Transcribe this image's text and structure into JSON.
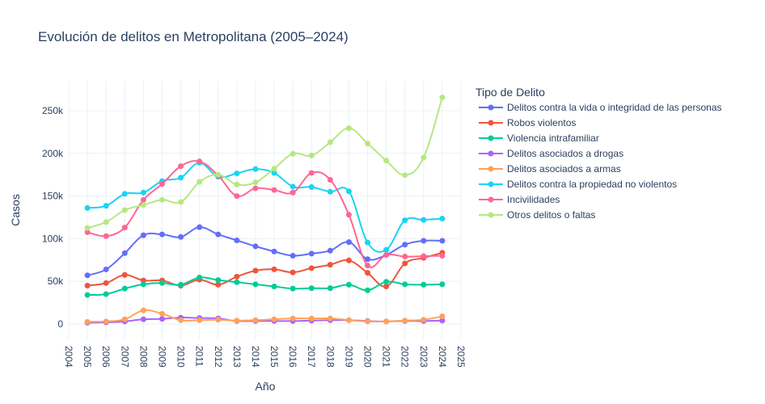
{
  "chart_data": {
    "type": "line",
    "title": "Evolución de delitos en Metropolitana (2005–2024)",
    "xlabel": "Año",
    "ylabel": "Casos",
    "legend_title": "Tipo de Delito",
    "legend_position": "right",
    "xlim": [
      2004,
      2025
    ],
    "ylim": [
      -18000,
      285000
    ],
    "x_ticks": [
      "2004",
      "2005",
      "2006",
      "2007",
      "2008",
      "2009",
      "2010",
      "2011",
      "2012",
      "2013",
      "2014",
      "2015",
      "2016",
      "2017",
      "2018",
      "2019",
      "2020",
      "2021",
      "2022",
      "2023",
      "2024",
      "2025"
    ],
    "y_ticks": [
      {
        "value": 0,
        "label": "0"
      },
      {
        "value": 50000,
        "label": "50k"
      },
      {
        "value": 100000,
        "label": "100k"
      },
      {
        "value": 150000,
        "label": "150k"
      },
      {
        "value": 200000,
        "label": "200k"
      },
      {
        "value": 250000,
        "label": "250k"
      }
    ],
    "grid": true,
    "x": [
      2005,
      2006,
      2007,
      2008,
      2009,
      2010,
      2011,
      2012,
      2013,
      2014,
      2015,
      2016,
      2017,
      2018,
      2019,
      2020,
      2021,
      2022,
      2023,
      2024
    ],
    "series": [
      {
        "name": "Delitos contra la vida o integridad de las personas",
        "color": "#636efa",
        "values": [
          57000,
          64000,
          83000,
          104000,
          105000,
          102000,
          113500,
          105000,
          98000,
          91000,
          85000,
          80000,
          82500,
          86000,
          96000,
          76000,
          81000,
          93000,
          97500,
          97500
        ]
      },
      {
        "name": "Robos violentos",
        "color": "#ef553b",
        "values": [
          45000,
          48000,
          57500,
          51000,
          51000,
          45000,
          52000,
          46000,
          55500,
          62500,
          64000,
          60500,
          65500,
          69500,
          74500,
          60000,
          44000,
          71000,
          77500,
          83500
        ]
      },
      {
        "name": "Violencia intrafamiliar",
        "color": "#00cc96",
        "values": [
          34000,
          35000,
          41500,
          46500,
          48000,
          46000,
          54500,
          51500,
          49000,
          46500,
          44000,
          41500,
          42000,
          42000,
          46000,
          39500,
          49500,
          46500,
          46000,
          46500
        ]
      },
      {
        "name": "Delitos asociados a drogas",
        "color": "#ab63fa",
        "values": [
          1500,
          2000,
          3000,
          5500,
          6000,
          7500,
          7000,
          6500,
          3500,
          3500,
          3500,
          3500,
          4000,
          4500,
          4500,
          3500,
          3000,
          3500,
          3500,
          4000
        ]
      },
      {
        "name": "Delitos asociados a armas",
        "color": "#ffa15a",
        "values": [
          2500,
          3000,
          5500,
          16000,
          12000,
          4500,
          4500,
          5000,
          4000,
          4500,
          5500,
          6500,
          6500,
          6500,
          4500,
          3000,
          3000,
          4000,
          5000,
          9000
        ]
      },
      {
        "name": "Delitos contra la propiedad no violentos",
        "color": "#19d3f3",
        "values": [
          136000,
          138500,
          152500,
          154000,
          167500,
          171500,
          189000,
          172500,
          176500,
          181500,
          177000,
          161000,
          160500,
          155000,
          155500,
          95500,
          87000,
          121500,
          122000,
          123500
        ]
      },
      {
        "name": "Incivilidades",
        "color": "#ff6692",
        "values": [
          107500,
          103000,
          113000,
          145500,
          164000,
          185000,
          190500,
          174000,
          150000,
          159000,
          157000,
          154000,
          177000,
          169000,
          128000,
          68500,
          81000,
          79000,
          79500,
          80000
        ]
      },
      {
        "name": "Otros delitos o faltas",
        "color": "#b6e880",
        "values": [
          112500,
          119500,
          133500,
          139500,
          145500,
          143000,
          166500,
          175000,
          163500,
          166000,
          182000,
          199500,
          197500,
          213000,
          229500,
          211500,
          191500,
          174500,
          195000,
          265500
        ]
      }
    ]
  }
}
